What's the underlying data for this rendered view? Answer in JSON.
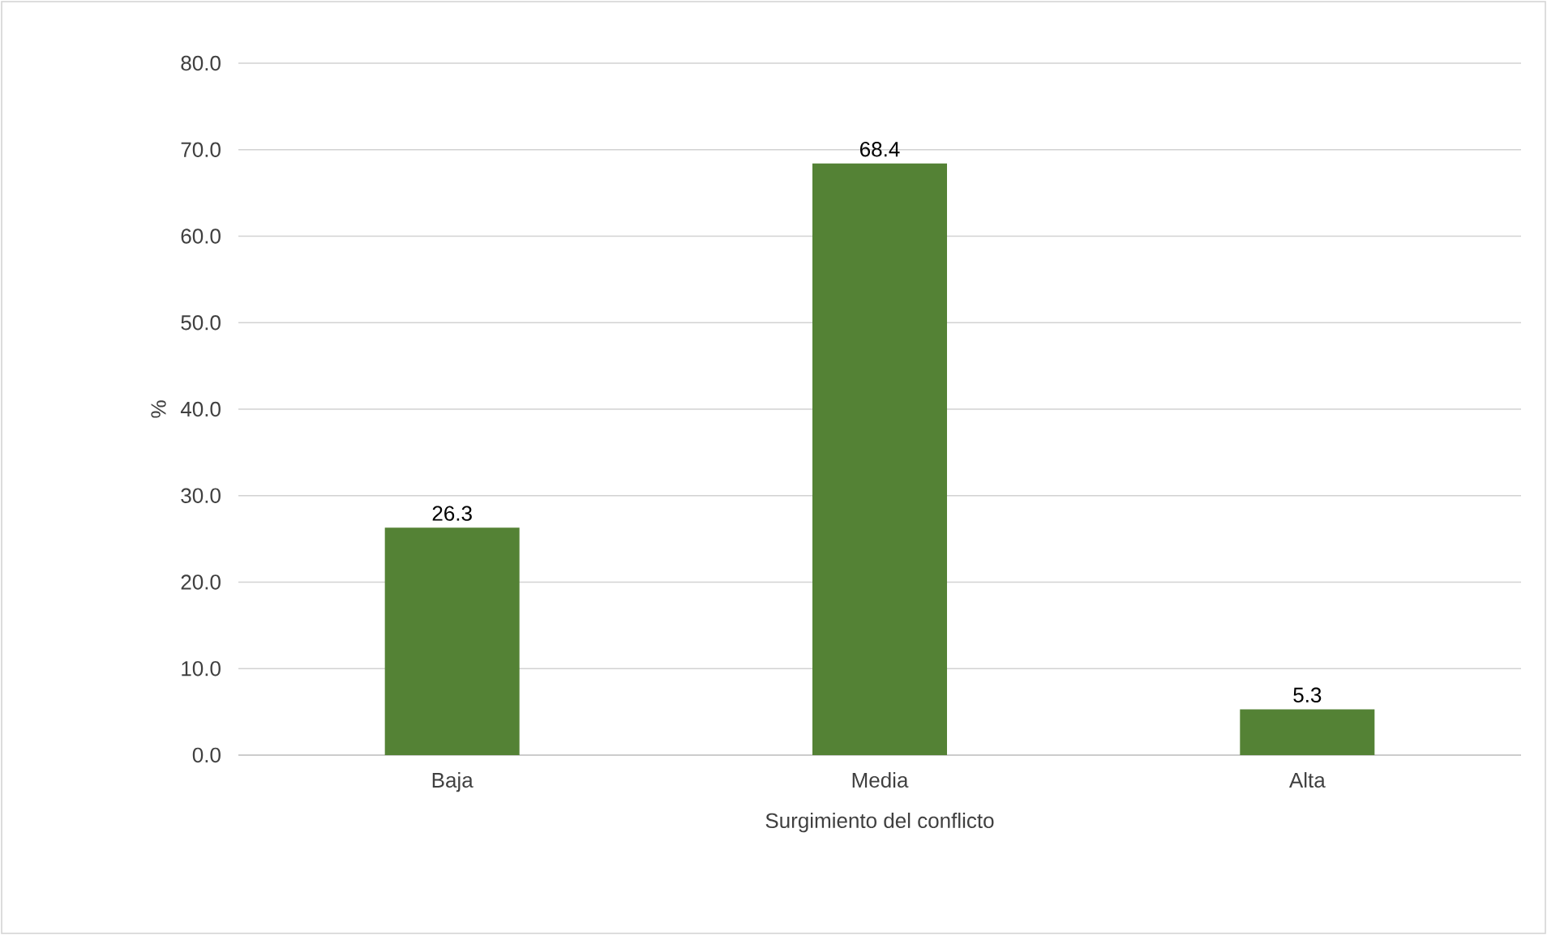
{
  "chart_data": {
    "type": "bar",
    "xlabel": "Surgimiento del conflicto",
    "ylabel": "%",
    "categories": [
      "Baja",
      "Media",
      "Alta"
    ],
    "values": [
      26.3,
      68.4,
      5.3
    ],
    "color": "#548235",
    "data_labels": true,
    "ylim": [
      0,
      80
    ],
    "yticks": [
      {
        "value": 0,
        "label": "0.0"
      },
      {
        "value": 10,
        "label": "10.0"
      },
      {
        "value": 20,
        "label": "20.0"
      },
      {
        "value": 30,
        "label": "30.0"
      },
      {
        "value": 40,
        "label": "40.0"
      },
      {
        "value": 50,
        "label": "50.0"
      },
      {
        "value": 60,
        "label": "60.0"
      },
      {
        "value": 70,
        "label": "70.0"
      },
      {
        "value": 80,
        "label": "80.0"
      }
    ],
    "grid": "y"
  }
}
